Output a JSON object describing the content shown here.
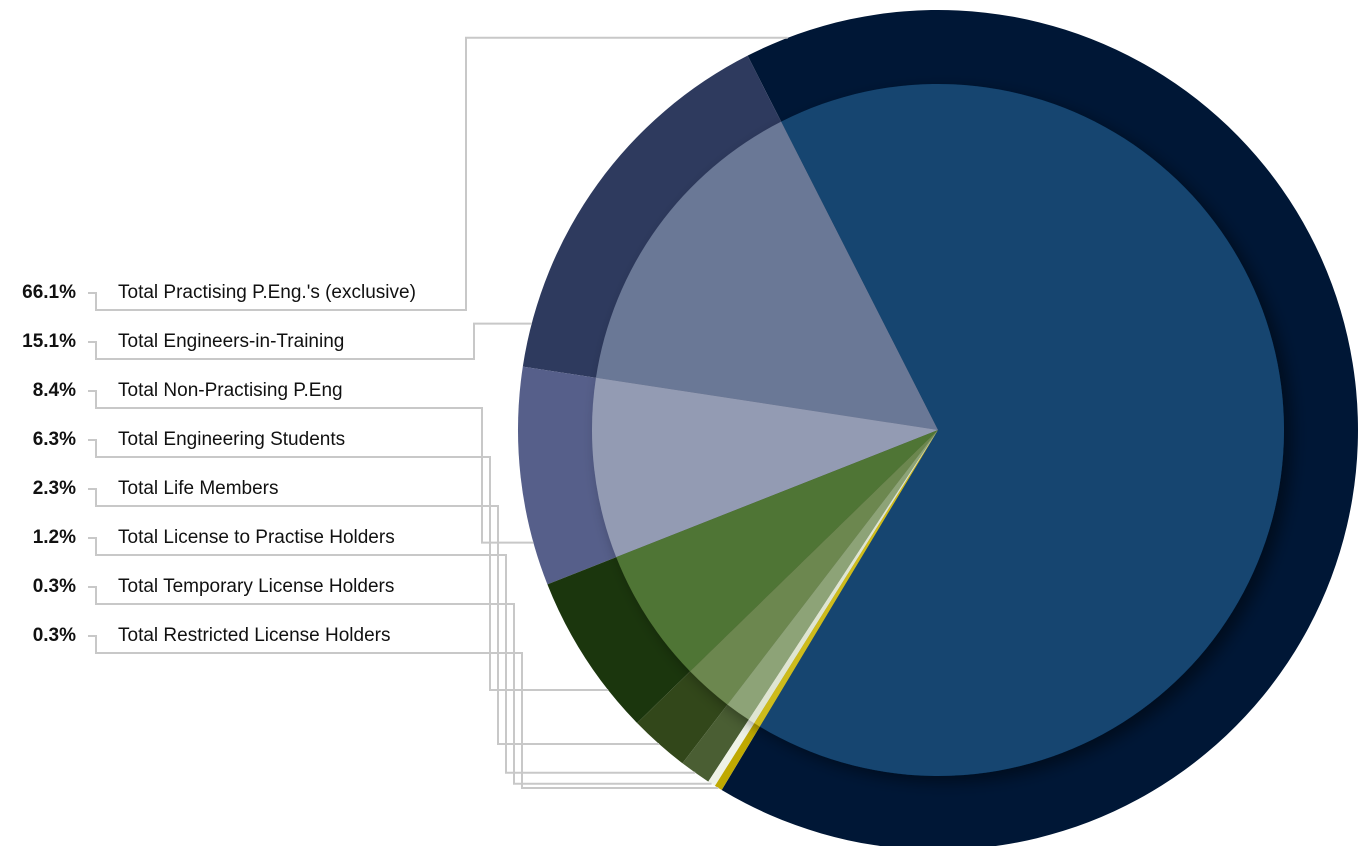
{
  "chart_data": {
    "type": "pie",
    "categories": [
      "Total Practising P.Eng.'s (exclusive)",
      "Total Engineers-in-Training",
      "Total Non-Practising P.Eng",
      "Total Engineering Students",
      "Total Life Members",
      "Total License to Practise Holders",
      "Total Temporary License Holders",
      "Total Restricted License Holders"
    ],
    "values": [
      66.1,
      15.1,
      8.4,
      6.3,
      2.3,
      1.2,
      0.3,
      0.3
    ],
    "value_labels": [
      "66.1%",
      "15.1%",
      "8.4%",
      "6.3%",
      "2.3%",
      "1.2%",
      "0.3%",
      "0.3%"
    ],
    "colors": [
      "#134570",
      "#6b7896",
      "#939bb3",
      "#507434",
      "#6c874f",
      "#8da377",
      "#dfe5d2",
      "#cdbb1e"
    ],
    "ring_colors": [
      "#001736",
      "#2e3a5e",
      "#565f8a",
      "#1b360d",
      "#32471a",
      "#4a5e33",
      "#eef2e6",
      "#bfa900"
    ]
  }
}
